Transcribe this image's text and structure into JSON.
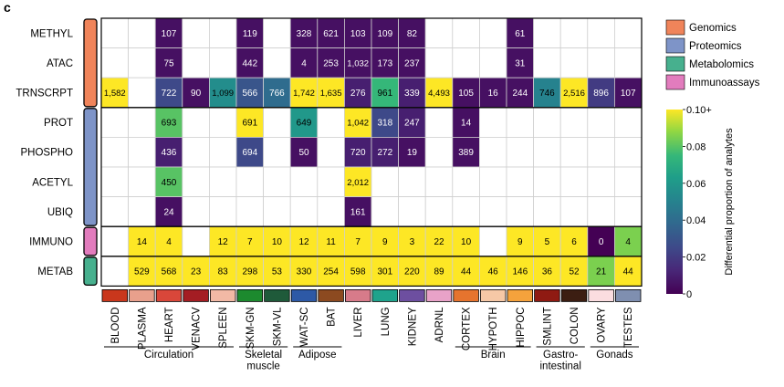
{
  "panel_label": "c",
  "chart_data": {
    "type": "heatmap",
    "rows": [
      "METHYL",
      "ATAC",
      "TRNSCRPT",
      "PROT",
      "PHOSPHO",
      "ACETYL",
      "UBIQ",
      "IMMUNO",
      "METAB"
    ],
    "columns": [
      "BLOOD",
      "PLASMA",
      "HEART",
      "VENACV",
      "SPLEEN",
      "SKM-GN",
      "SKM-VL",
      "WAT-SC",
      "BAT",
      "LIVER",
      "LUNG",
      "KIDNEY",
      "ADRNL",
      "CORTEX",
      "HYPOTH",
      "HIPPOC",
      "SMLINT",
      "COLON",
      "OVARY",
      "TESTES"
    ],
    "column_colors": [
      "#c9371c",
      "#e8a08c",
      "#d9473a",
      "#a41d23",
      "#f2b9a5",
      "#1c8a2e",
      "#1f5a3a",
      "#2d59a6",
      "#8c4a20",
      "#d77b8a",
      "#1fa38c",
      "#6d4fa0",
      "#e8a2c8",
      "#e6742e",
      "#f6c8a6",
      "#f5a23c",
      "#8f1a12",
      "#3c1e12",
      "#fbdde0",
      "#7f8fb0"
    ],
    "cell_labels": [
      [
        "",
        "",
        "107",
        "",
        "",
        "119",
        "",
        "328",
        "621",
        "103",
        "109",
        "82",
        "",
        "",
        "",
        "61",
        "",
        "",
        "",
        ""
      ],
      [
        "",
        "",
        "75",
        "",
        "",
        "442",
        "",
        "4",
        "253",
        "1,032",
        "173",
        "237",
        "",
        "",
        "",
        "31",
        "",
        "",
        "",
        ""
      ],
      [
        "1,582",
        "",
        "722",
        "90",
        "1,099",
        "566",
        "766",
        "1,742",
        "1,635",
        "276",
        "961",
        "339",
        "4,493",
        "105",
        "16",
        "244",
        "746",
        "2,516",
        "896",
        "107"
      ],
      [
        "",
        "",
        "693",
        "",
        "",
        "691",
        "",
        "649",
        "",
        "1,042",
        "318",
        "247",
        "",
        "14",
        "",
        "",
        "",
        "",
        "",
        ""
      ],
      [
        "",
        "",
        "436",
        "",
        "",
        "694",
        "",
        "50",
        "",
        "720",
        "272",
        "19",
        "",
        "389",
        "",
        "",
        "",
        "",
        "",
        ""
      ],
      [
        "",
        "",
        "450",
        "",
        "",
        "",
        "",
        "",
        "",
        "2,012",
        "",
        "",
        "",
        "",
        "",
        "",
        "",
        "",
        "",
        ""
      ],
      [
        "",
        "",
        "24",
        "",
        "",
        "",
        "",
        "",
        "",
        "161",
        "",
        "",
        "",
        "",
        "",
        "",
        "",
        "",
        "",
        ""
      ],
      [
        "",
        "14",
        "4",
        "",
        "12",
        "7",
        "10",
        "12",
        "11",
        "7",
        "9",
        "3",
        "22",
        "10",
        "",
        "9",
        "5",
        "6",
        "0",
        "4"
      ],
      [
        "",
        "529",
        "568",
        "23",
        "83",
        "298",
        "53",
        "330",
        "254",
        "598",
        "301",
        "220",
        "89",
        "44",
        "46",
        "146",
        "36",
        "52",
        "21",
        "44"
      ]
    ],
    "values": [
      [
        null,
        null,
        0.005,
        null,
        null,
        0.005,
        null,
        0.005,
        0.005,
        0.005,
        0.005,
        0.005,
        null,
        null,
        null,
        0.005,
        null,
        null,
        null,
        null
      ],
      [
        null,
        null,
        0.005,
        null,
        null,
        0.005,
        null,
        0.005,
        0.005,
        0.005,
        0.005,
        0.005,
        null,
        null,
        null,
        0.005,
        null,
        null,
        null,
        null
      ],
      [
        0.1,
        null,
        0.025,
        0.005,
        0.055,
        0.03,
        0.04,
        0.1,
        0.1,
        0.01,
        0.075,
        0.01,
        0.1,
        0.005,
        0.005,
        0.005,
        0.05,
        0.1,
        0.02,
        0.005
      ],
      [
        null,
        null,
        0.08,
        null,
        null,
        0.1,
        null,
        0.06,
        null,
        0.1,
        0.025,
        0.01,
        null,
        0.005,
        null,
        null,
        null,
        null,
        null,
        null
      ],
      [
        null,
        null,
        0.01,
        null,
        null,
        0.025,
        null,
        0.005,
        null,
        0.01,
        0.01,
        0.005,
        null,
        0.005,
        null,
        null,
        null,
        null,
        null,
        null
      ],
      [
        null,
        null,
        0.08,
        null,
        null,
        null,
        null,
        null,
        null,
        0.1,
        null,
        null,
        null,
        null,
        null,
        null,
        null,
        null,
        null,
        null
      ],
      [
        null,
        null,
        0.005,
        null,
        null,
        null,
        null,
        null,
        null,
        0.005,
        null,
        null,
        null,
        null,
        null,
        null,
        null,
        null,
        null,
        null
      ],
      [
        null,
        0.1,
        0.1,
        null,
        0.1,
        0.1,
        0.1,
        0.1,
        0.1,
        0.1,
        0.1,
        0.1,
        0.1,
        0.1,
        null,
        0.1,
        0.1,
        0.1,
        0.0,
        0.085
      ],
      [
        null,
        0.1,
        0.1,
        0.1,
        0.1,
        0.1,
        0.1,
        0.1,
        0.1,
        0.1,
        0.1,
        0.1,
        0.1,
        0.1,
        0.1,
        0.1,
        0.1,
        0.1,
        0.085,
        0.1
      ]
    ],
    "row_groups": [
      {
        "name": "Genomics",
        "color": "#f0845a",
        "rows": [
          0,
          2
        ]
      },
      {
        "name": "Proteomics",
        "color": "#7e94c8",
        "rows": [
          3,
          6
        ]
      },
      {
        "name": "Immunoassays",
        "color": "#e27cbd",
        "rows": [
          7,
          7
        ]
      },
      {
        "name": "Metabolomics",
        "color": "#47b08e",
        "rows": [
          8,
          8
        ]
      }
    ],
    "legend": [
      {
        "name": "Genomics",
        "color": "#f0845a"
      },
      {
        "name": "Proteomics",
        "color": "#7e94c8"
      },
      {
        "name": "Metabolomics",
        "color": "#47b08e"
      },
      {
        "name": "Immunoassays",
        "color": "#e27cbd"
      }
    ],
    "colorbar": {
      "label": "Differential proportion of analytes",
      "range": [
        0,
        0.1
      ],
      "ticks": [
        "0",
        "0.02",
        "0.04",
        "0.06",
        "0.08",
        "0.10+"
      ]
    },
    "column_groups": [
      {
        "label": "Circulation",
        "cols": [
          0,
          4
        ]
      },
      {
        "label": "Skeletal\nmuscle",
        "cols": [
          5,
          6
        ]
      },
      {
        "label": "Adipose",
        "cols": [
          7,
          8
        ]
      },
      {
        "label": "Brain",
        "cols": [
          13,
          15
        ]
      },
      {
        "label": "Gastro-\nintestinal",
        "cols": [
          16,
          17
        ]
      },
      {
        "label": "Gonads",
        "cols": [
          18,
          19
        ]
      }
    ]
  }
}
